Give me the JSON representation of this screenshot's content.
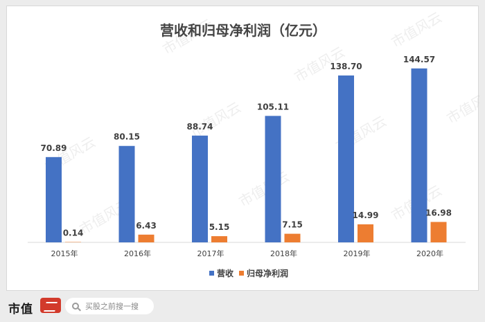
{
  "chart_data": {
    "type": "bar",
    "title": "营收和归母净利润（亿元）",
    "categories": [
      "2015年",
      "2016年",
      "2017年",
      "2018年",
      "2019年",
      "2020年"
    ],
    "series": [
      {
        "name": "营收",
        "color": "#4472C4",
        "values": [
          70.89,
          80.15,
          88.74,
          105.11,
          138.7,
          144.57
        ]
      },
      {
        "name": "归母净利润",
        "color": "#ED7D31",
        "values": [
          0.14,
          6.43,
          5.15,
          7.15,
          14.99,
          16.98
        ]
      }
    ],
    "value_labels": [
      [
        "70.89",
        "80.15",
        "88.74",
        "105.11",
        "138.70",
        "144.57"
      ],
      [
        "0.14",
        "6.43",
        "5.15",
        "7.15",
        "14.99",
        "16.98"
      ]
    ],
    "ylim": [
      0,
      160
    ],
    "grid": false,
    "legend_position": "bottom"
  },
  "watermark": "市值风云",
  "footer": {
    "brand": "市值",
    "search_placeholder": "买股之前搜一搜"
  }
}
